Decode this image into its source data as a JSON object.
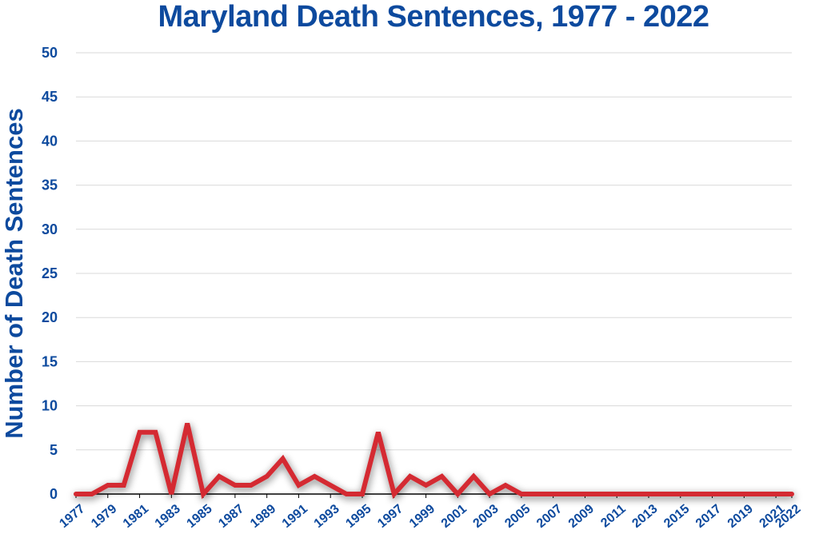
{
  "chart_data": {
    "type": "line",
    "title": "Maryland Death Sentences, 1977 - 2022",
    "xlabel": "",
    "ylabel": "Number of Death Sentences",
    "ylim": [
      0,
      50
    ],
    "yticks": [
      0,
      5,
      10,
      15,
      20,
      25,
      30,
      35,
      40,
      45,
      50
    ],
    "xtick_labels": [
      "1977",
      "1979",
      "1981",
      "1983",
      "1985",
      "1987",
      "1989",
      "1991",
      "1993",
      "1995",
      "1997",
      "1999",
      "2001",
      "2003",
      "2005",
      "2007",
      "2009",
      "2011",
      "2013",
      "2015",
      "2017",
      "2019",
      "2021",
      "2022"
    ],
    "grid": true,
    "legend": "none",
    "series": [
      {
        "color": "#d42a30",
        "x": [
          1977,
          1978,
          1979,
          1980,
          1981,
          1982,
          1983,
          1984,
          1985,
          1986,
          1987,
          1988,
          1989,
          1990,
          1991,
          1992,
          1993,
          1994,
          1995,
          1996,
          1997,
          1998,
          1999,
          2000,
          2001,
          2002,
          2003,
          2004,
          2005,
          2006,
          2007,
          2008,
          2009,
          2010,
          2011,
          2012,
          2013,
          2014,
          2015,
          2016,
          2017,
          2018,
          2019,
          2020,
          2021,
          2022
        ],
        "values": [
          0,
          0,
          1,
          1,
          7,
          7,
          0,
          8,
          0,
          2,
          1,
          1,
          2,
          4,
          1,
          2,
          1,
          0,
          0,
          7,
          0,
          2,
          1,
          2,
          0,
          2,
          0,
          1,
          0,
          0,
          0,
          0,
          0,
          0,
          0,
          0,
          0,
          0,
          0,
          0,
          0,
          0,
          0,
          0,
          0,
          0
        ]
      }
    ]
  },
  "colors": {
    "title": "#0d4a9e",
    "line": "#d42a30",
    "grid": "#d9d9d9",
    "axis": "#000000"
  }
}
